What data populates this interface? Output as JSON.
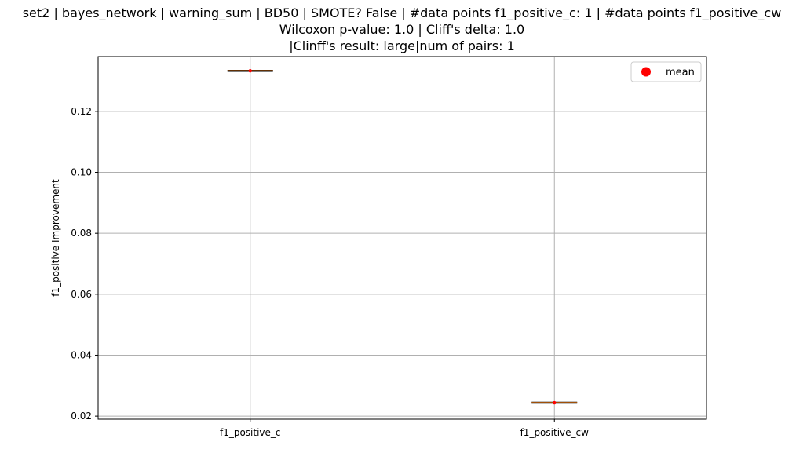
{
  "chart_data": {
    "type": "box",
    "title_lines": [
      "set2 | bayes_network | warning_sum | BD50 | SMOTE? False | #data points f1_positive_c: 1 | #data points f1_positive_cw",
      "Wilcoxon p-value: 1.0 | Cliff's delta: 1.0",
      "|Clinff's result: large|num of pairs: 1"
    ],
    "xlabel": "",
    "ylabel": "f1_positive Improvement",
    "categories": [
      "f1_positive_c",
      "f1_positive_cw"
    ],
    "values": [
      0.1333,
      0.0244
    ],
    "means": [
      0.1333,
      0.0244
    ],
    "ylim": [
      0.019,
      0.138
    ],
    "yticks": [
      0.02,
      0.04,
      0.06,
      0.08,
      0.1,
      0.12
    ],
    "ytick_labels": [
      "0.02",
      "0.04",
      "0.06",
      "0.08",
      "0.10",
      "0.12"
    ],
    "grid": true,
    "legend": {
      "entries": [
        "mean"
      ],
      "placement": "top-right"
    },
    "colors": {
      "median": "#ff7f0e",
      "mean_marker": "#ff0000",
      "grid": "#b0b0b0"
    }
  }
}
